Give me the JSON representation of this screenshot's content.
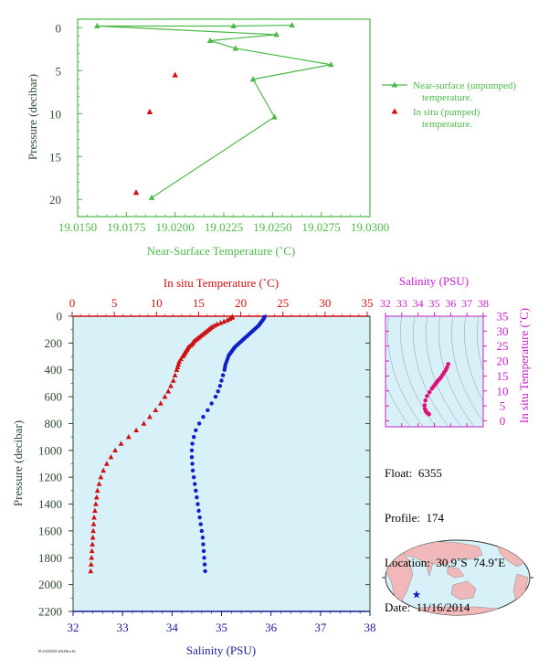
{
  "chart_data": [
    {
      "type": "line",
      "xlabel": "Near-Surface Temperature (˚C)",
      "ylabel": "Pressure (decibar)",
      "xlim": [
        19.015,
        19.03
      ],
      "ylim": [
        22,
        -1
      ],
      "x_ticks": [
        "19.0150",
        "19.0175",
        "19.0200",
        "19.0225",
        "19.0250",
        "19.0275",
        "19.0300"
      ],
      "y_ticks": [
        "0",
        "5",
        "10",
        "15",
        "20"
      ],
      "series": [
        {
          "name": "Near-surface (unpumped) temperature.",
          "color": "#4db848",
          "marker": "triangle",
          "points": [
            [
              19.026,
              -0.3
            ],
            [
              19.023,
              -0.2
            ],
            [
              19.016,
              -0.2
            ],
            [
              19.0252,
              0.8
            ],
            [
              19.0218,
              1.5
            ],
            [
              19.0231,
              2.4
            ],
            [
              19.028,
              4.3
            ],
            [
              19.024,
              6.0
            ],
            [
              19.0251,
              10.4
            ],
            [
              19.0188,
              19.8
            ]
          ]
        },
        {
          "name": "In situ (pumped) temperature.",
          "color": "#d01010",
          "marker": "triangle",
          "points": [
            [
              19.02,
              5.5
            ],
            [
              19.0187,
              9.8
            ],
            [
              19.018,
              19.2
            ]
          ]
        }
      ]
    },
    {
      "type": "scatter",
      "xlabel": "Salinity (PSU)",
      "ylabel": "Pressure (decibar)",
      "x2label": "In situ Temperature (˚C)",
      "xlim": [
        32,
        38
      ],
      "x2lim": [
        -2,
        35
      ],
      "ylim": [
        2200,
        0
      ],
      "x_ticks": [
        "32",
        "33",
        "34",
        "35",
        "36",
        "37",
        "38"
      ],
      "x2_ticks": [
        "0",
        "5",
        "10",
        "15",
        "20",
        "25",
        "30",
        "35"
      ],
      "y_ticks": [
        "0",
        "200",
        "400",
        "600",
        "800",
        "1000",
        "1200",
        "1400",
        "1600",
        "1800",
        "2000",
        "2200"
      ],
      "series": [
        {
          "name": "temperature",
          "color": "#d01010",
          "marker": "triangle",
          "pressure": [
            5,
            10,
            20,
            30,
            40,
            50,
            60,
            70,
            80,
            90,
            100,
            110,
            120,
            130,
            140,
            150,
            160,
            170,
            180,
            190,
            200,
            210,
            220,
            230,
            240,
            250,
            260,
            270,
            280,
            290,
            300,
            320,
            340,
            360,
            380,
            400,
            440,
            480,
            520,
            560,
            600,
            650,
            700,
            750,
            800,
            850,
            900,
            950,
            1000,
            1050,
            1100,
            1150,
            1200,
            1250,
            1300,
            1350,
            1400,
            1450,
            1500,
            1550,
            1600,
            1650,
            1700,
            1750,
            1800,
            1850,
            1900
          ],
          "values": [
            19.0,
            18.95,
            18.7,
            18.4,
            18.0,
            17.6,
            17.2,
            16.9,
            16.6,
            16.4,
            16.2,
            16.0,
            15.8,
            15.6,
            15.4,
            15.2,
            15.0,
            14.8,
            14.6,
            14.4,
            14.3,
            14.2,
            14.0,
            13.8,
            13.7,
            13.6,
            13.5,
            13.4,
            13.3,
            13.2,
            13.1,
            12.9,
            12.7,
            12.6,
            12.5,
            12.4,
            12.2,
            12.0,
            11.7,
            11.4,
            11.0,
            10.5,
            9.9,
            9.2,
            8.5,
            7.6,
            6.7,
            5.8,
            5.1,
            4.6,
            4.1,
            3.7,
            3.4,
            3.2,
            3.0,
            2.9,
            2.8,
            2.7,
            2.6,
            2.55,
            2.5,
            2.45,
            2.4,
            2.35,
            2.3,
            2.25,
            2.2
          ]
        },
        {
          "name": "salinity",
          "color": "#1020c8",
          "marker": "circle",
          "pressure": [
            5,
            10,
            20,
            30,
            40,
            50,
            60,
            70,
            80,
            90,
            100,
            110,
            120,
            130,
            140,
            150,
            160,
            170,
            180,
            190,
            200,
            210,
            220,
            230,
            240,
            250,
            260,
            270,
            280,
            290,
            300,
            320,
            340,
            360,
            380,
            400,
            440,
            480,
            520,
            560,
            600,
            650,
            700,
            750,
            800,
            850,
            900,
            950,
            1000,
            1050,
            1100,
            1150,
            1200,
            1250,
            1300,
            1350,
            1400,
            1450,
            1500,
            1550,
            1600,
            1650,
            1700,
            1750,
            1800,
            1850,
            1900
          ],
          "values": [
            35.87,
            35.86,
            35.85,
            35.83,
            35.81,
            35.79,
            35.77,
            35.75,
            35.72,
            35.69,
            35.66,
            35.63,
            35.6,
            35.57,
            35.54,
            35.51,
            35.48,
            35.45,
            35.42,
            35.39,
            35.36,
            35.33,
            35.3,
            35.27,
            35.25,
            35.23,
            35.21,
            35.19,
            35.17,
            35.15,
            35.14,
            35.12,
            35.1,
            35.08,
            35.07,
            35.06,
            35.03,
            35.0,
            34.97,
            34.93,
            34.88,
            34.8,
            34.72,
            34.63,
            34.55,
            34.48,
            34.44,
            34.41,
            34.4,
            34.4,
            34.41,
            34.42,
            34.44,
            34.46,
            34.48,
            34.5,
            34.52,
            34.54,
            34.56,
            34.58,
            34.6,
            34.62,
            34.63,
            34.64,
            34.65,
            34.66,
            34.67
          ]
        }
      ]
    },
    {
      "type": "scatter",
      "x2label": "Salinity (PSU)",
      "ylabel": "In situ Temperature (˚C)",
      "x2lim": [
        32,
        38
      ],
      "ylim": [
        -2,
        35
      ],
      "x2_ticks": [
        "32",
        "33",
        "34",
        "35",
        "36",
        "37",
        "38"
      ],
      "y_ticks": [
        "0",
        "5",
        "10",
        "15",
        "20",
        "25",
        "30",
        "35"
      ],
      "series": [
        {
          "name": "T-S",
          "color": "#e0107a",
          "marker": "dot",
          "points": [
            [
              35.85,
              19.0
            ],
            [
              35.78,
              17.9
            ],
            [
              35.7,
              17.0
            ],
            [
              35.6,
              16.2
            ],
            [
              35.5,
              15.3
            ],
            [
              35.4,
              14.5
            ],
            [
              35.3,
              13.9
            ],
            [
              35.2,
              13.3
            ],
            [
              35.12,
              12.7
            ],
            [
              35.05,
              12.2
            ],
            [
              34.95,
              11.5
            ],
            [
              34.85,
              10.8
            ],
            [
              34.7,
              9.6
            ],
            [
              34.55,
              8.3
            ],
            [
              34.45,
              6.8
            ],
            [
              34.4,
              5.2
            ],
            [
              34.42,
              4.0
            ],
            [
              34.48,
              3.2
            ],
            [
              34.55,
              2.7
            ],
            [
              34.62,
              2.4
            ],
            [
              34.67,
              2.2
            ]
          ]
        }
      ]
    }
  ],
  "info": {
    "float": "Float:  6355",
    "profile": "Profile:  174",
    "location": "Location:  30.9˚S  74.9˚E",
    "date": "Date:  11/16/2014"
  },
  "footer": "FLOAT6355 2014Nov16",
  "colors": {
    "green": "#4db848",
    "red": "#d01010",
    "blue": "#1020c8",
    "magenta": "#c81ec8",
    "navy": "#1a1a9a",
    "panel_bg": "#d8f0f8",
    "land": "#f0b8b8",
    "dark_green_text": "#2e4a2e"
  },
  "map": {
    "marker": "star-icon"
  }
}
